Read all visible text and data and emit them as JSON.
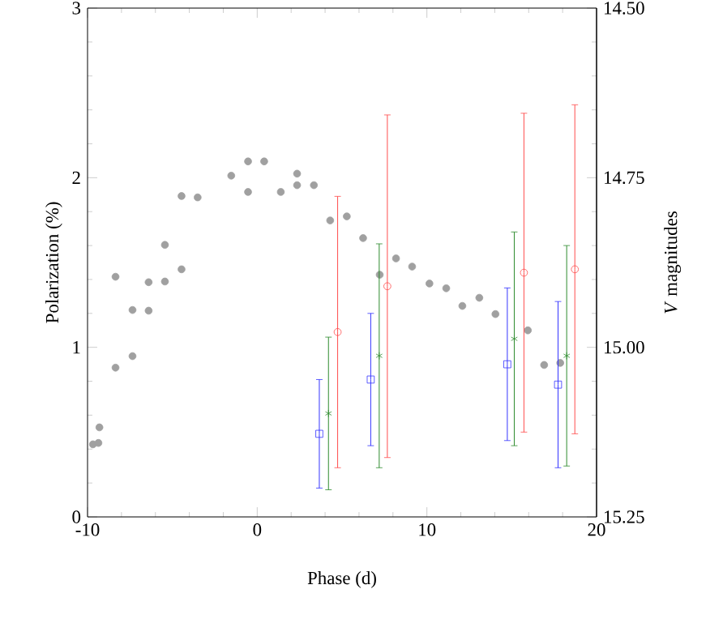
{
  "chart_data": {
    "type": "scatter",
    "xlabel": "Phase (d)",
    "ylabel": "Polarization (%)",
    "y2label": "*V* magnitudes",
    "xlim": [
      -10,
      20
    ],
    "xticks": [
      -10,
      0,
      10,
      20
    ],
    "ylim": [
      0,
      3
    ],
    "yticks": [
      0,
      1,
      2,
      3
    ],
    "y2lim": [
      15.25,
      14.5
    ],
    "y2ticks": [
      {
        "value": 14.5,
        "label": "14.50"
      },
      {
        "value": 14.75,
        "label": "14.75"
      },
      {
        "value": 15.0,
        "label": "15.00"
      },
      {
        "value": 15.25,
        "label": "15.25"
      }
    ],
    "series": [
      {
        "color": "#a0a0a0",
        "marker": "circle",
        "axis": "y2",
        "x": [
          -9.68,
          -9.36,
          -9.3,
          -8.35,
          -8.35,
          -7.35,
          -7.35,
          -6.4,
          -6.4,
          -5.44,
          -5.44,
          -4.46,
          -4.46,
          -3.51,
          -1.53,
          -0.54,
          -0.54,
          0.41,
          1.39,
          2.35,
          2.35,
          3.34,
          4.3,
          5.28,
          6.24,
          7.22,
          8.18,
          9.13,
          10.15,
          11.14,
          12.09,
          13.09,
          14.04,
          15.95,
          16.91,
          17.86
        ],
        "values": [
          15.143,
          15.141,
          15.118,
          15.03,
          14.896,
          15.013,
          14.945,
          14.946,
          14.904,
          14.903,
          14.849,
          14.885,
          14.777,
          14.779,
          14.747,
          14.771,
          14.726,
          14.726,
          14.771,
          14.761,
          14.744,
          14.761,
          14.813,
          14.807,
          14.839,
          14.893,
          14.869,
          14.881,
          14.906,
          14.913,
          14.939,
          14.927,
          14.951,
          14.975,
          15.026,
          15.023
        ]
      },
      {
        "color": "#3333ff",
        "marker": "square",
        "x": [
          3.66,
          6.69,
          14.74,
          17.73
        ],
        "values": [
          0.49,
          0.81,
          0.9,
          0.78
        ],
        "errors": [
          0.32,
          0.39,
          0.45,
          0.49
        ]
      },
      {
        "color": "#2e8b2e",
        "marker": "cross",
        "x": [
          4.2,
          7.19,
          15.15,
          18.24
        ],
        "values": [
          0.61,
          0.95,
          1.05,
          0.95
        ],
        "errors": [
          0.45,
          0.66,
          0.63,
          0.65
        ]
      },
      {
        "color": "#ff4d4d",
        "marker": "circle",
        "x": [
          4.74,
          7.67,
          15.72,
          18.72
        ],
        "values": [
          1.09,
          1.36,
          1.44,
          1.46
        ],
        "errors": [
          0.8,
          1.01,
          0.94,
          0.97
        ]
      }
    ]
  }
}
